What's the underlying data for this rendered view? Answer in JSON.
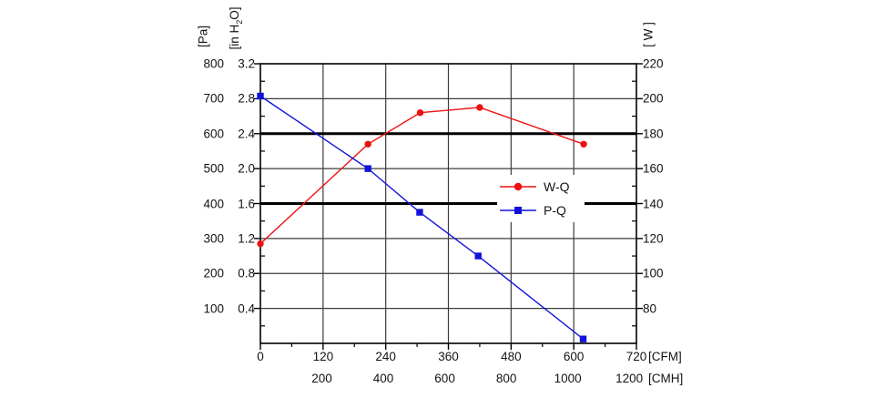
{
  "page": {
    "background": "#ffffff"
  },
  "chart_data": {
    "type": "line",
    "title": "",
    "axes": {
      "left_pa": {
        "unit": "[Pa]",
        "ticks": [
          "800",
          "700",
          "600",
          "500",
          "400",
          "300",
          "200",
          "100"
        ]
      },
      "left_inh2o": {
        "unit_parts": [
          "[in H",
          "2",
          "O]"
        ],
        "ticks": [
          "3.2",
          "2.8",
          "2.4",
          "2.0",
          "1.6",
          "1.2",
          "0.8",
          "0.4"
        ],
        "range": [
          0,
          3.2
        ],
        "major_step": 0.4,
        "minor_step": 0.2
      },
      "right_w": {
        "unit": "[ W ]",
        "ticks": [
          "220",
          "200",
          "180",
          "160",
          "140",
          "120",
          "100",
          "80"
        ],
        "range": [
          60,
          220
        ],
        "major_step": 20,
        "minor_step": 10
      },
      "bottom_cfm": {
        "unit": "[CFM]",
        "ticks": [
          0,
          120,
          240,
          360,
          480,
          600,
          720
        ],
        "range": [
          0,
          720
        ],
        "major_step": 120,
        "minor_step": 60
      },
      "bottom_cmh": {
        "unit": "[CMH]",
        "ticks": [
          200,
          400,
          600,
          800,
          1000,
          1200
        ],
        "cfm_per_cmh": 0.58858
      }
    },
    "grid": {
      "color": "#3c3c3c",
      "bold_color": "#000000",
      "bold_rows_inh2o": [
        2.4,
        1.6
      ],
      "vertical_every_cfm": 120,
      "horizontal_every_inh2o": 0.4
    },
    "series": [
      {
        "name": "W-Q",
        "color": "#ee1010",
        "marker": "circle",
        "y_axis": "right_w",
        "x_cfm": [
          0,
          206,
          306,
          420,
          619
        ],
        "x_cmh": [
          0,
          350,
          520,
          714,
          1052
        ],
        "y_w": [
          117,
          174,
          192,
          195,
          174
        ]
      },
      {
        "name": "P-Q",
        "color": "#1212dd",
        "marker": "square",
        "y_axis": "left_inh2o",
        "x_cfm": [
          0,
          206,
          305,
          417,
          618
        ],
        "x_cmh": [
          0,
          350,
          518,
          708,
          1050
        ],
        "y_inh2o": [
          2.83,
          2.0,
          1.5,
          1.0,
          0.05
        ],
        "y_pa": [
          705,
          498,
          374,
          249,
          12
        ]
      }
    ],
    "legend": {
      "position": "inside-middle-right",
      "entries": [
        {
          "label": "W-Q"
        },
        {
          "label": "P-Q"
        }
      ]
    }
  }
}
